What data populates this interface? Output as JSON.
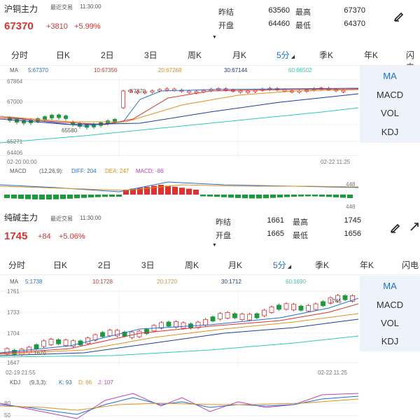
{
  "panel1": {
    "name": "沪铜主力",
    "last_trade_label": "最近交易",
    "last_trade_time": "11:30:00",
    "price": "67370",
    "change": "+3810",
    "change_pct": "+5.99%",
    "stats": [
      {
        "label": "昨结",
        "value": "63560"
      },
      {
        "label": "最高",
        "value": "67370"
      },
      {
        "label": "开盘",
        "value": "64460"
      },
      {
        "label": "最低",
        "value": "64370"
      }
    ],
    "tabs": [
      "分时",
      "日K",
      "2日",
      "3日",
      "周K",
      "月K",
      "5分",
      "季K",
      "年K",
      "闪电"
    ],
    "active_tab": "5分",
    "ma_label": "MA",
    "ma_values": [
      {
        "label": "5:",
        "value": "67370",
        "color": "#1e6fd8"
      },
      {
        "label": "10:",
        "value": "67356",
        "color": "#e03030"
      },
      {
        "label": "20:",
        "value": "67268",
        "color": "#e0901e"
      },
      {
        "label": "30:",
        "value": "67144",
        "color": "#1e3c9c"
      },
      {
        "label": "60:",
        "value": "66502",
        "color": "#2fc9b4"
      }
    ],
    "y_ticks": [
      "67864",
      "67000",
      "65271",
      "64406"
    ],
    "annotations": [
      "67370",
      "65580"
    ],
    "time_start": "02-20 00:00",
    "time_end": "02-22 11:25",
    "sub_indicator": {
      "name": "MACD",
      "params": "(12,26,9):",
      "diff": "DIFF: 204",
      "dea": "DEA: 247",
      "macd": "MACD: -86",
      "top_tick": "448",
      "bottom_tick": "448"
    },
    "side_menu": [
      "MA",
      "MACD",
      "VOL",
      "KDJ"
    ],
    "side_active": "MA"
  },
  "panel2": {
    "name": "纯碱主力",
    "last_trade_label": "最近交易",
    "last_trade_time": "11:30:00",
    "price": "1745",
    "change": "+84",
    "change_pct": "+5.06%",
    "stats": [
      {
        "label": "昨结",
        "value": "1661"
      },
      {
        "label": "最高",
        "value": "1745"
      },
      {
        "label": "开盘",
        "value": "1665"
      },
      {
        "label": "最低",
        "value": "1656"
      }
    ],
    "tabs": [
      "分时",
      "日K",
      "2日",
      "3日",
      "周K",
      "月K",
      "5分",
      "季K",
      "年K",
      "闪电"
    ],
    "active_tab": "5分",
    "ma_label": "MA",
    "ma_values": [
      {
        "label": "5:",
        "value": "1738",
        "color": "#1e6fd8"
      },
      {
        "label": "10:",
        "value": "1728",
        "color": "#e03030"
      },
      {
        "label": "20:",
        "value": "1720",
        "color": "#e0901e"
      },
      {
        "label": "30:",
        "value": "1712",
        "color": "#1e3c9c"
      },
      {
        "label": "60:",
        "value": "1690",
        "color": "#2fc9b4"
      }
    ],
    "y_ticks": [
      "1761",
      "1733",
      "1704",
      "1647"
    ],
    "annotations": [
      "1745",
      "1670"
    ],
    "time_start": "02-19 21:55",
    "time_end": "02-22 11:25",
    "sub_indicator": {
      "name": "KDJ",
      "params": "(9,3,3):",
      "k": "K: 93",
      "d": "D: 86",
      "j": "J: 107",
      "ticks": [
        "80",
        "50"
      ]
    },
    "side_menu": [
      "MA",
      "MACD",
      "VOL",
      "KDJ"
    ],
    "side_active": "MA"
  },
  "colors": {
    "up": "#e03030",
    "down": "#1a9a3a",
    "accent": "#1e6fd8",
    "side_bg": "#edf2fb"
  },
  "icons": [
    "edit-pen-icon",
    "expand-icon",
    "dropdown-caret-icon"
  ]
}
